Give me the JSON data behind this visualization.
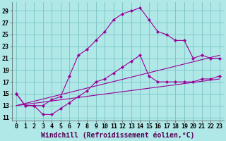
{
  "bg_color": "#b0e8e8",
  "grid_color": "#80c8c8",
  "line_color": "#990099",
  "marker_color": "#990099",
  "xlabel": "Windchill (Refroidissement éolien,°C)",
  "xlabel_fontsize": 7,
  "tick_fontsize": 6,
  "xlim": [
    -0.5,
    23.5
  ],
  "ylim": [
    10.5,
    30.5
  ],
  "yticks": [
    11,
    13,
    15,
    17,
    19,
    21,
    23,
    25,
    27,
    29
  ],
  "xticks": [
    0,
    1,
    2,
    3,
    4,
    5,
    6,
    7,
    8,
    9,
    10,
    11,
    12,
    13,
    14,
    15,
    16,
    17,
    18,
    19,
    20,
    21,
    22,
    23
  ],
  "series": [
    {
      "x": [
        0,
        1,
        2,
        3,
        4,
        5,
        6,
        7,
        8,
        9,
        10,
        11,
        12,
        13,
        14,
        15,
        16,
        17,
        18,
        19,
        20,
        21,
        22,
        23
      ],
      "y": [
        15,
        13,
        13,
        13,
        14,
        14.5,
        18,
        21.5,
        22.5,
        24,
        25.5,
        27.5,
        28.5,
        29,
        29.5,
        27.5,
        25.5,
        25,
        24,
        24,
        21,
        21.5,
        21,
        21
      ],
      "has_markers": true
    },
    {
      "x": [
        0,
        1,
        2,
        3,
        4,
        5,
        6,
        7,
        8,
        9,
        10,
        11,
        12,
        13,
        14,
        15,
        16,
        17,
        18,
        19,
        20,
        21,
        22,
        23
      ],
      "y": [
        15,
        13,
        13,
        11.5,
        11.5,
        12.5,
        13.5,
        14.5,
        15.5,
        17,
        17.5,
        18.5,
        19.5,
        20.5,
        21.5,
        18,
        17,
        17,
        17,
        17,
        17,
        17.5,
        17.5,
        18
      ],
      "has_markers": true
    },
    {
      "x": [
        0,
        23
      ],
      "y": [
        13,
        21.5
      ],
      "has_markers": false
    },
    {
      "x": [
        0,
        23
      ],
      "y": [
        13,
        17.5
      ],
      "has_markers": false
    }
  ]
}
